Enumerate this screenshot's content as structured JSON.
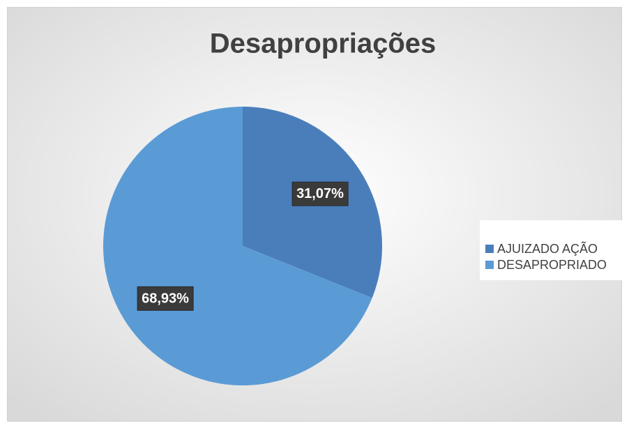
{
  "chart_data": {
    "type": "pie",
    "title": "Desapropriações",
    "categories": [
      "AJUIZADO AÇÃO",
      "DESAPROPRIADO"
    ],
    "values": [
      31.07,
      68.93
    ],
    "value_labels": [
      "31,07%",
      "68,93%"
    ],
    "colors": [
      "#4a7ebb",
      "#5b9bd5"
    ],
    "legend": "right"
  }
}
